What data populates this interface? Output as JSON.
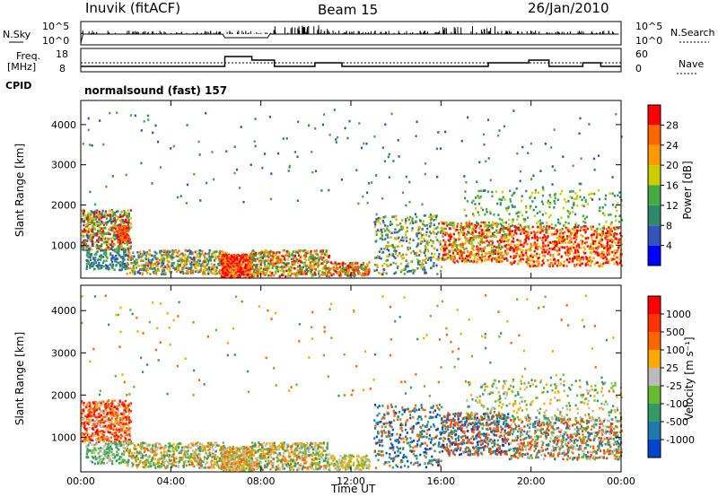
{
  "header": {
    "station": "Inuvik (fitACF)",
    "beam": "Beam 15",
    "date": "26/Jan/2010"
  },
  "noise_panel": {
    "left_label": "N.Sky",
    "right_label": "N.Search",
    "tick_top": "10^5",
    "tick_bottom": "10^0",
    "right_tick_top": "10^5",
    "right_tick_bottom": "10^0"
  },
  "freq_panel": {
    "left_label_1": "Freq.",
    "left_label_2": "[MHz]",
    "right_label": "Nave",
    "left_ticks": [
      "18",
      "8"
    ],
    "right_ticks": [
      "60",
      "0"
    ],
    "cpid_label": "CPID",
    "cpid_text": "normalsound (fast) 157"
  },
  "chart_data": [
    {
      "type": "heatmap",
      "name": "power",
      "ylabel": "Slant Range [km]",
      "ylim": [
        180,
        4600
      ],
      "yticks": [
        "1000",
        "2000",
        "3000",
        "4000"
      ],
      "xlabel": "Time UT",
      "xticks": [
        "00:00",
        "04:00",
        "08:00",
        "12:00",
        "16:00",
        "20:00",
        "00:00"
      ],
      "xlim_hours": [
        0,
        24
      ],
      "colorbar": {
        "label": "Power [dB]",
        "ticks": [
          "4",
          "8",
          "12",
          "16",
          "20",
          "24",
          "28"
        ],
        "range": [
          0,
          32
        ],
        "colors": [
          "#0000ff",
          "#3355bb",
          "#2e8a6a",
          "#44aa44",
          "#cccc00",
          "#ff9900",
          "#ff6600",
          "#ff0000"
        ]
      }
    },
    {
      "type": "heatmap",
      "name": "velocity",
      "ylabel": "Slant Range [km]",
      "ylim": [
        180,
        4600
      ],
      "yticks": [
        "1000",
        "2000",
        "3000",
        "4000"
      ],
      "xlabel": "Time UT",
      "xticks": [
        "00:00",
        "04:00",
        "08:00",
        "12:00",
        "16:00",
        "20:00",
        "00:00"
      ],
      "xlim_hours": [
        0,
        24
      ],
      "colorbar": {
        "label": "Velocity [m s⁻¹]",
        "ticks": [
          "1000",
          "500",
          "100",
          "25",
          "-25",
          "-100",
          "-500",
          "-1000"
        ],
        "colors": [
          "#0044cc",
          "#2277aa",
          "#339966",
          "#66bb33",
          "#bbbbbb",
          "#ffaa00",
          "#ff6600",
          "#ff3300",
          "#ff0000"
        ]
      }
    }
  ]
}
